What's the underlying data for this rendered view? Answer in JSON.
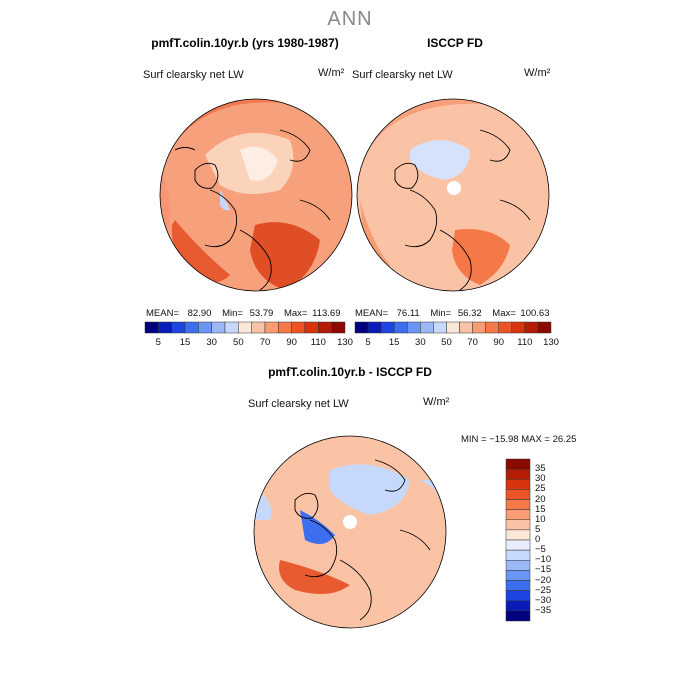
{
  "page_title": "ANN",
  "panels": [
    {
      "title": "pmfT.colin.10yr.b (yrs 1980-1987)",
      "field": "Surf clearsky net LW",
      "units": "W/m²",
      "mean_label": "MEAN=",
      "mean": "82.90",
      "min_label": "Min=",
      "min": "53.79",
      "max_label": "Max=",
      "max": "113.69"
    },
    {
      "title": "ISCCP FD",
      "field": "Surf clearsky net LW",
      "units": "W/m²",
      "mean_label": "MEAN=",
      "mean": "76.11",
      "min_label": "Min=",
      "min": "56.32",
      "max_label": "Max=",
      "max": "100.63"
    }
  ],
  "diff_panel": {
    "title": "pmfT.colin.10yr.b - ISCCP FD",
    "field": "Surf clearsky net LW",
    "units": "W/m²",
    "minmax_text": "MIN = −15.98  MAX =   26.25"
  },
  "colorbar_top": {
    "ticks": [
      "5",
      "15",
      "30",
      "50",
      "70",
      "90",
      "110",
      "130"
    ],
    "colors": [
      "#00007f",
      "#0a1cb8",
      "#1e45e0",
      "#3d6ef0",
      "#6a95f5",
      "#9ab8f8",
      "#c6d8fb",
      "#fde7d8",
      "#fbc3a5",
      "#f89c74",
      "#f47848",
      "#ec5426",
      "#d8350f",
      "#b51c05",
      "#8a0a00"
    ]
  },
  "colorbar_diff": {
    "ticks": [
      "35",
      "30",
      "25",
      "20",
      "15",
      "10",
      "5",
      "0",
      "−5",
      "−10",
      "−15",
      "−20",
      "−25",
      "−30",
      "−35"
    ],
    "colors": [
      "#8a0a00",
      "#b51c05",
      "#d8350f",
      "#ec5426",
      "#f47848",
      "#f89c74",
      "#fbc3a5",
      "#fde7d8",
      "#e8eefc",
      "#c6d8fb",
      "#9ab8f8",
      "#6a95f5",
      "#3d6ef0",
      "#1e45e0",
      "#0a1cb8",
      "#00007f"
    ]
  },
  "chart_data": [
    {
      "type": "heatmap",
      "title": "pmfT.colin.10yr.b (yrs 1980-1987)",
      "field": "Surf clearsky net LW",
      "units": "W/m²",
      "projection": "north polar stereographic",
      "mean": 82.9,
      "min": 53.79,
      "max": 113.69,
      "colorbar_levels": [
        5,
        15,
        30,
        50,
        70,
        90,
        110,
        130
      ]
    },
    {
      "type": "heatmap",
      "title": "ISCCP FD",
      "field": "Surf clearsky net LW",
      "units": "W/m²",
      "projection": "north polar stereographic",
      "mean": 76.11,
      "min": 56.32,
      "max": 100.63,
      "colorbar_levels": [
        5,
        15,
        30,
        50,
        70,
        90,
        110,
        130
      ]
    },
    {
      "type": "heatmap",
      "title": "pmfT.colin.10yr.b - ISCCP FD",
      "field": "Surf clearsky net LW",
      "units": "W/m²",
      "projection": "north polar stereographic",
      "min": -15.98,
      "max": 26.25,
      "colorbar_levels": [
        -35,
        -30,
        -25,
        -20,
        -15,
        -10,
        -5,
        0,
        5,
        10,
        15,
        20,
        25,
        30,
        35
      ]
    }
  ]
}
